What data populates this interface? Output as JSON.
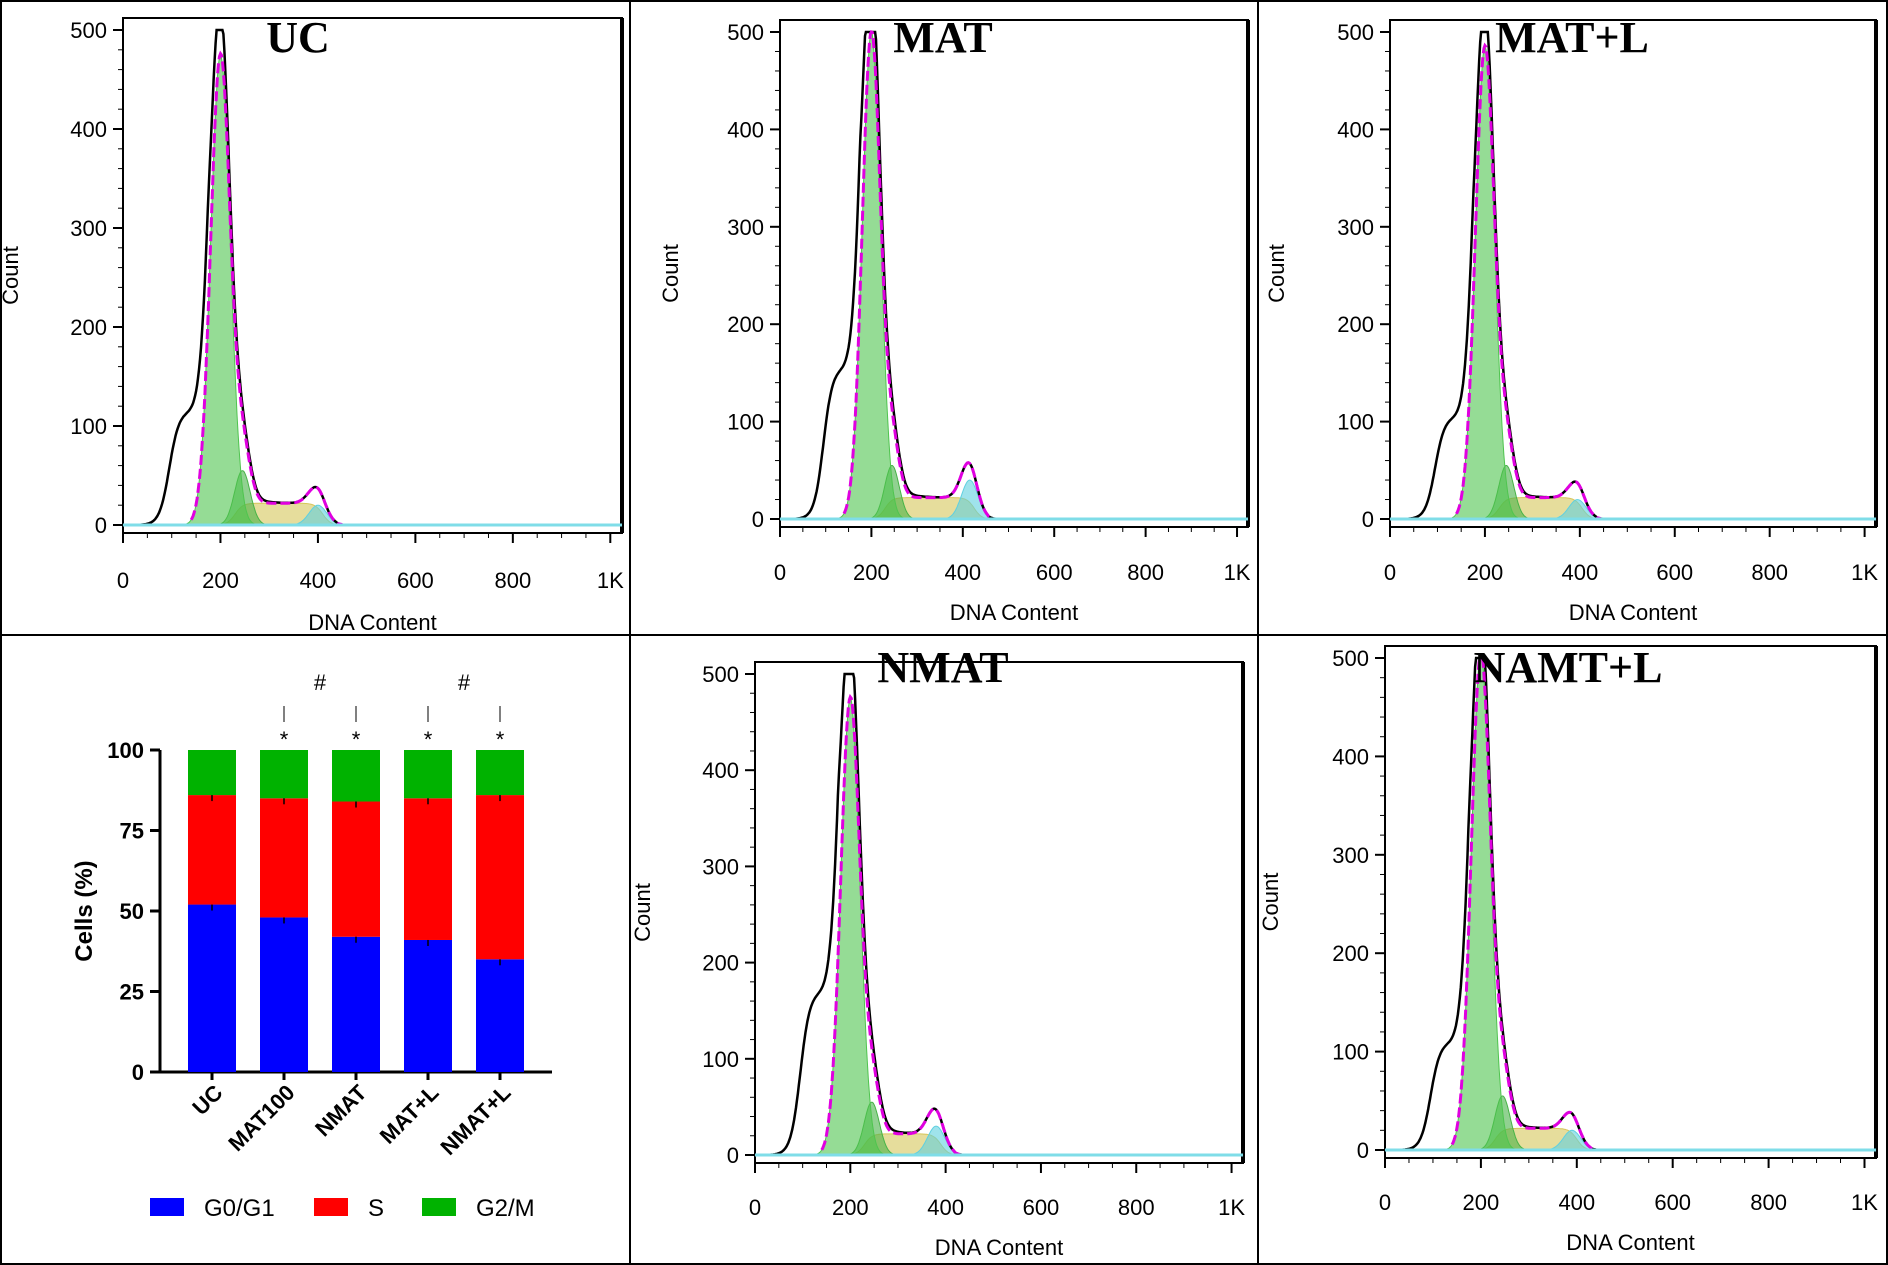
{
  "chart_data": [
    {
      "type": "histogram",
      "title": "UC",
      "xlabel": "DNA Content",
      "ylabel": "Count",
      "xticks": [
        "0",
        "200",
        "400",
        "600",
        "800",
        "1K"
      ],
      "yticks": [
        "0",
        "100",
        "200",
        "300",
        "400",
        "500"
      ],
      "xlim": [
        0,
        1024
      ],
      "ylim": [
        0,
        500
      ],
      "peaks": {
        "g1_x": 200,
        "g1_count": 475,
        "g2_x": 400,
        "g2_count": 20,
        "debris_count": 115
      }
    },
    {
      "type": "histogram",
      "title": "MAT",
      "xlabel": "DNA Content",
      "ylabel": "Count",
      "xticks": [
        "0",
        "200",
        "400",
        "600",
        "800",
        "1K"
      ],
      "yticks": [
        "0",
        "100",
        "200",
        "300",
        "400",
        "500"
      ],
      "xlim": [
        0,
        1024
      ],
      "ylim": [
        0,
        500
      ],
      "peaks": {
        "g1_x": 200,
        "g1_count": 500,
        "g2_x": 415,
        "g2_count": 40,
        "debris_count": 155
      }
    },
    {
      "type": "histogram",
      "title": "MAT+L",
      "xlabel": "DNA Content",
      "ylabel": "Count",
      "xticks": [
        "0",
        "200",
        "400",
        "600",
        "800",
        "1K"
      ],
      "yticks": [
        "0",
        "100",
        "200",
        "300",
        "400",
        "500"
      ],
      "xlim": [
        0,
        1024
      ],
      "ylim": [
        0,
        500
      ],
      "peaks": {
        "g1_x": 200,
        "g1_count": 485,
        "g2_x": 395,
        "g2_count": 20,
        "debris_count": 105
      }
    },
    {
      "type": "bar",
      "stacked": true,
      "categories": [
        "UC",
        "MAT100",
        "NMAT",
        "MAT+L",
        "NMAT+L"
      ],
      "series": [
        {
          "name": "G0/G1",
          "color": "#0000ff",
          "values": [
            52,
            48,
            42,
            41,
            35
          ]
        },
        {
          "name": "S",
          "color": "#ff0000",
          "values": [
            34,
            37,
            42,
            44,
            51
          ]
        },
        {
          "name": "G2/M",
          "color": "#00b200",
          "values": [
            14,
            15,
            16,
            15,
            14
          ]
        }
      ],
      "ylabel": "Cells (%)",
      "yticks": [
        "0",
        "25",
        "50",
        "75",
        "100"
      ],
      "ylim": [
        0,
        100
      ],
      "legend_position": "bottom",
      "annotations": {
        "stars": [
          "*",
          "*",
          "*",
          "*"
        ],
        "hashes": [
          "#",
          "#"
        ]
      }
    },
    {
      "type": "histogram",
      "title": "NMAT",
      "xlabel": "DNA Content",
      "ylabel": "Count",
      "xticks": [
        "0",
        "200",
        "400",
        "600",
        "800",
        "1K"
      ],
      "yticks": [
        "0",
        "100",
        "200",
        "300",
        "400",
        "500"
      ],
      "xlim": [
        0,
        1024
      ],
      "ylim": [
        0,
        500
      ],
      "peaks": {
        "g1_x": 200,
        "g1_count": 475,
        "g2_x": 380,
        "g2_count": 30,
        "debris_count": 170
      }
    },
    {
      "type": "histogram",
      "title": "NAMT+L",
      "xlabel": "DNA Content",
      "ylabel": "Count",
      "xticks": [
        "0",
        "200",
        "400",
        "600",
        "800",
        "1K"
      ],
      "yticks": [
        "0",
        "100",
        "200",
        "300",
        "400",
        "500"
      ],
      "xlim": [
        0,
        1024
      ],
      "ylim": [
        0,
        500
      ],
      "peaks": {
        "g1_x": 200,
        "g1_count": 505,
        "g2_x": 390,
        "g2_count": 20,
        "debris_count": 110
      }
    }
  ]
}
